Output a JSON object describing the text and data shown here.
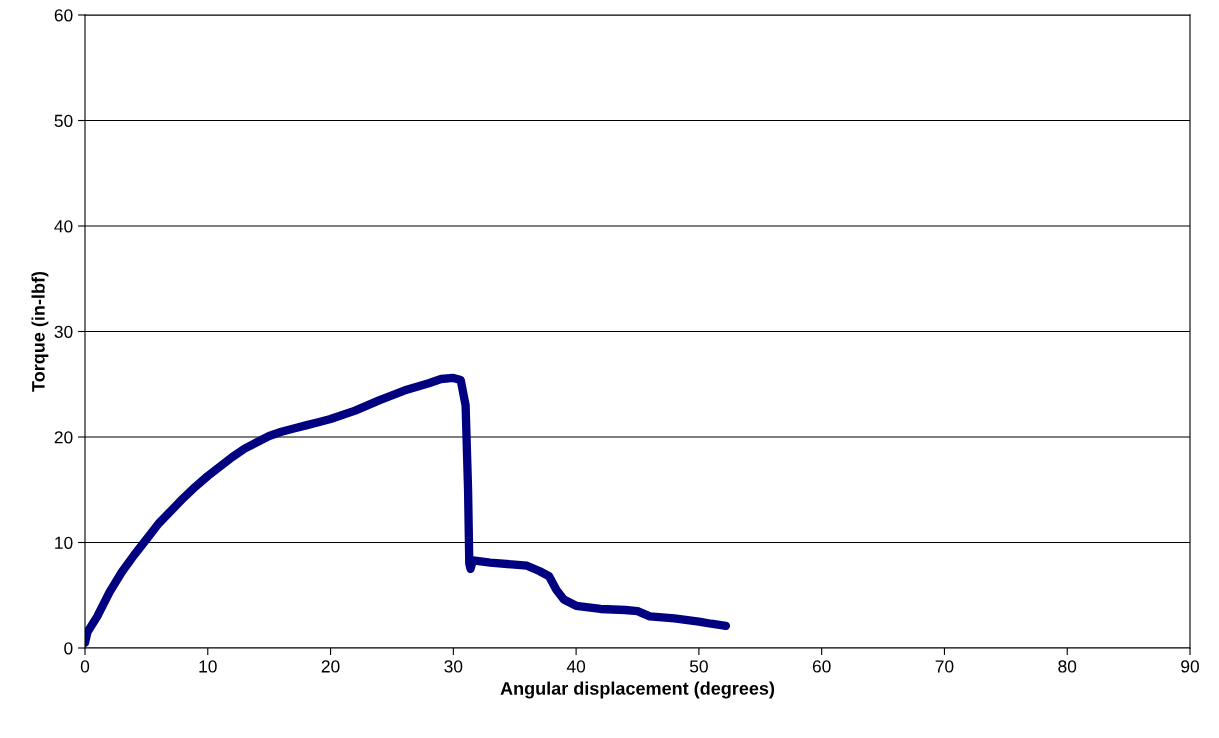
{
  "chart_data": {
    "type": "line",
    "xlabel": "Angular displacement (degrees)",
    "ylabel": "Torque (in-lbf)",
    "xlim": [
      0,
      90
    ],
    "xticks": [
      0,
      10,
      20,
      30,
      40,
      50,
      60,
      70,
      80,
      90
    ],
    "ylim": [
      0,
      60
    ],
    "yticks": [
      0,
      10,
      20,
      30,
      40,
      50,
      60
    ],
    "grid": "y",
    "legend": false,
    "marker": "none",
    "line_style": "solid",
    "series": [
      {
        "color": "#000080",
        "x": [
          0,
          0.2,
          1,
          2,
          3,
          4,
          5,
          6,
          7,
          8,
          9,
          10,
          11,
          12,
          13,
          14,
          15,
          16,
          17,
          18,
          19,
          20,
          22,
          24,
          26,
          28,
          29,
          30,
          30.6,
          31,
          31.2,
          31.3,
          31.4,
          31.6,
          33,
          35,
          36,
          37,
          37.8,
          38.4,
          39,
          40,
          42,
          44,
          45,
          46,
          48,
          50,
          51,
          52.2
        ],
        "values": [
          0.5,
          1.5,
          3,
          5.3,
          7.2,
          8.8,
          10.3,
          11.8,
          13,
          14.2,
          15.3,
          16.3,
          17.2,
          18.1,
          18.9,
          19.5,
          20.1,
          20.5,
          20.8,
          21.1,
          21.4,
          21.7,
          22.5,
          23.5,
          24.4,
          25.1,
          25.5,
          25.6,
          25.4,
          23,
          15,
          8,
          7.5,
          8.3,
          8.1,
          7.9,
          7.8,
          7.3,
          6.8,
          5.5,
          4.6,
          4,
          3.7,
          3.6,
          3.5,
          3.0,
          2.8,
          2.5,
          2.3,
          2.1
        ]
      }
    ]
  }
}
